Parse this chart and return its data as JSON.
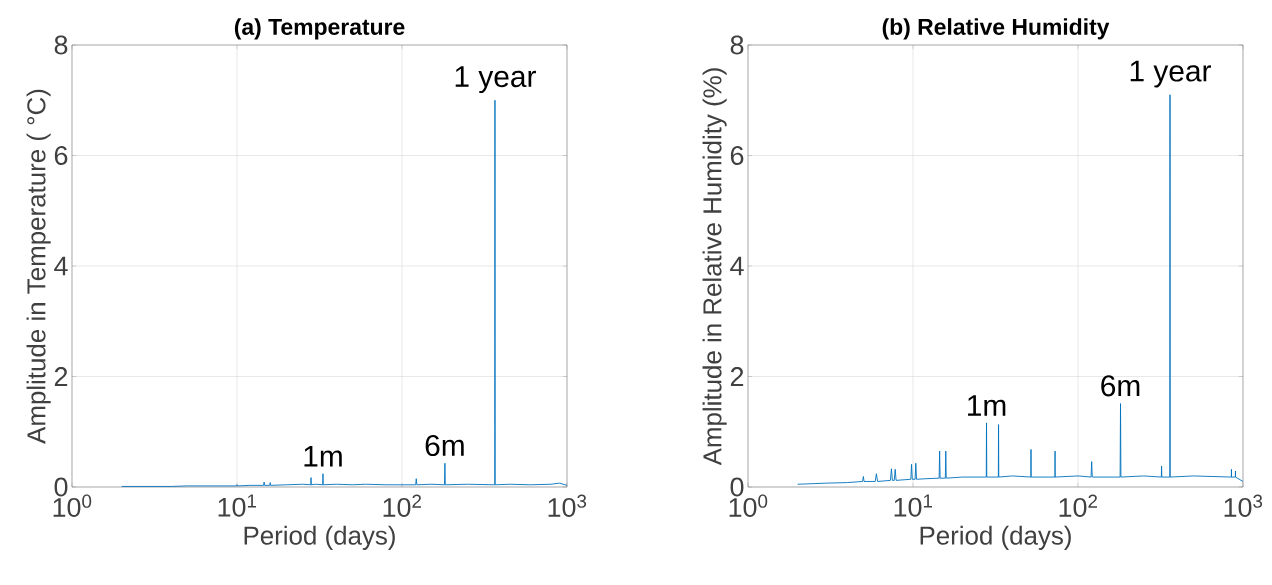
{
  "chart_data": [
    {
      "type": "line",
      "title": "(a) Temperature",
      "xlabel": "Period (days)",
      "ylabel": "Amplitude in Temperature ( °C)",
      "log": "x",
      "grid": true,
      "xlim": [
        1,
        1000
      ],
      "xticks": [
        {
          "value": 1,
          "label": "10$^{0}$"
        },
        {
          "value": 10,
          "label": "10$^{1}$"
        },
        {
          "value": 100,
          "label": "10$^{2}$"
        },
        {
          "value": 1000,
          "label": "10$^{3}$"
        }
      ],
      "ylim": [
        0,
        8
      ],
      "yticks": [
        0,
        2,
        4,
        6,
        8
      ],
      "annotations": [
        {
          "text": "1m",
          "x": 33.2,
          "y": 0.24
        },
        {
          "text": "6m",
          "x": 182,
          "y": 0.43
        },
        {
          "text": "1 year",
          "x": 366,
          "y": 7.0
        }
      ],
      "series": [
        {
          "color": "#0072bd",
          "x": [
            2,
            3,
            4,
            5,
            6,
            7,
            8,
            9,
            9.9,
            10,
            10.1,
            12,
            14.5,
            14.6,
            14.7,
            15.8,
            15.9,
            16,
            20,
            25,
            28,
            28.1,
            28.2,
            30,
            33.1,
            33.2,
            33.3,
            40,
            50,
            60,
            80,
            100,
            121,
            122,
            123,
            150,
            181,
            182,
            183,
            250,
            365,
            366,
            367,
            450,
            600,
            800,
            900,
            1000
          ],
          "values": [
            0.01,
            0.01,
            0.01,
            0.02,
            0.02,
            0.02,
            0.02,
            0.02,
            0.02,
            0.04,
            0.02,
            0.03,
            0.03,
            0.09,
            0.03,
            0.03,
            0.08,
            0.03,
            0.04,
            0.05,
            0.04,
            0.17,
            0.04,
            0.05,
            0.04,
            0.24,
            0.04,
            0.05,
            0.04,
            0.05,
            0.04,
            0.04,
            0.04,
            0.15,
            0.04,
            0.05,
            0.04,
            0.43,
            0.04,
            0.05,
            0.04,
            7.0,
            0.04,
            0.05,
            0.04,
            0.05,
            0.07,
            0.03
          ]
        }
      ]
    },
    {
      "type": "line",
      "title": "(b) Relative Humidity",
      "xlabel": "Period (days)",
      "ylabel": "Amplitude in Relative Humidity (%)",
      "log": "x",
      "grid": true,
      "xlim": [
        1,
        1000
      ],
      "xticks": [
        {
          "value": 1,
          "label": "10$^{0}$"
        },
        {
          "value": 10,
          "label": "10$^{1}$"
        },
        {
          "value": 100,
          "label": "10$^{2}$"
        },
        {
          "value": 1000,
          "label": "10$^{3}$"
        }
      ],
      "ylim": [
        0,
        8
      ],
      "yticks": [
        0,
        2,
        4,
        6,
        8
      ],
      "annotations": [
        {
          "text": "1m",
          "x": 27.9,
          "y": 1.16
        },
        {
          "text": "6m",
          "x": 181,
          "y": 1.51
        },
        {
          "text": "1 year",
          "x": 361,
          "y": 7.1
        }
      ],
      "series": [
        {
          "color": "#0072bd",
          "x": [
            2,
            3,
            4,
            4.95,
            5,
            5.05,
            5.9,
            6,
            6.1,
            7.3,
            7.4,
            7.5,
            7.7,
            7.8,
            7.9,
            9.7,
            9.8,
            9.9,
            10.3,
            10.4,
            10.5,
            12,
            14.4,
            14.5,
            14.6,
            15.7,
            15.8,
            15.9,
            20,
            27.8,
            27.9,
            28,
            32.9,
            33,
            33.1,
            40,
            51.8,
            51.9,
            52,
            72.5,
            72.6,
            72.7,
            100,
            120,
            121,
            122,
            180,
            181,
            182,
            250,
            320,
            321,
            322,
            360,
            361,
            362,
            500,
            850,
            851,
            852,
            899,
            900,
            901,
            1000
          ],
          "values": [
            0.05,
            0.07,
            0.08,
            0.1,
            0.19,
            0.1,
            0.1,
            0.24,
            0.1,
            0.12,
            0.33,
            0.12,
            0.12,
            0.32,
            0.12,
            0.14,
            0.41,
            0.14,
            0.14,
            0.43,
            0.14,
            0.15,
            0.16,
            0.65,
            0.16,
            0.16,
            0.65,
            0.16,
            0.18,
            0.18,
            1.16,
            0.18,
            0.18,
            1.13,
            0.18,
            0.2,
            0.18,
            0.68,
            0.18,
            0.18,
            0.65,
            0.18,
            0.2,
            0.18,
            0.46,
            0.18,
            0.18,
            1.51,
            0.18,
            0.2,
            0.18,
            0.38,
            0.18,
            0.18,
            7.1,
            0.18,
            0.2,
            0.18,
            0.32,
            0.18,
            0.18,
            0.29,
            0.18,
            0.1
          ]
        }
      ]
    }
  ]
}
